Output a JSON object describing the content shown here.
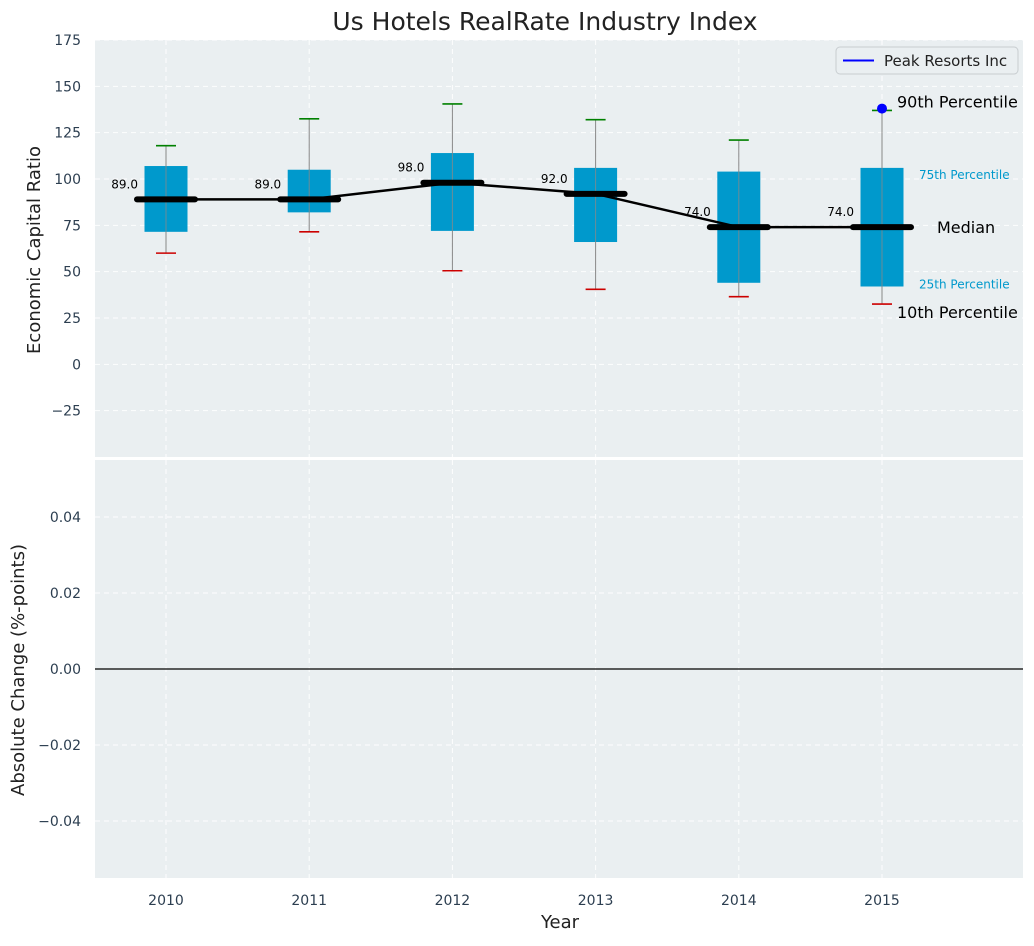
{
  "chart_data": {
    "type": "box",
    "title": "Us Hotels RealRate Industry Index",
    "xlabel": "Year",
    "categories": [
      "2010",
      "2011",
      "2012",
      "2013",
      "2014",
      "2015"
    ],
    "top_panel": {
      "ylabel": "Economic Capital Ratio",
      "ylim": [
        -50,
        175
      ],
      "yticks": [
        175,
        150,
        125,
        100,
        75,
        50,
        25,
        0,
        -25
      ],
      "ytick_labels": [
        "175",
        "150",
        "125",
        "100",
        "75",
        "50",
        "25",
        "0",
        "−25"
      ],
      "percentiles": {
        "p10": [
          60,
          71.5,
          50.5,
          40.5,
          36.5,
          32.5
        ],
        "p25": [
          71.5,
          82,
          72,
          66,
          44,
          42
        ],
        "median": [
          89.0,
          89.0,
          98.0,
          92.0,
          74.0,
          74.0
        ],
        "p75": [
          107,
          105,
          114,
          106,
          104,
          106
        ],
        "p90": [
          118,
          132.5,
          140.5,
          132,
          121,
          137
        ]
      },
      "median_labels": [
        "89.0",
        "89.0",
        "98.0",
        "92.0",
        "74.0",
        "74.0"
      ],
      "company_series": {
        "name": "Peak Resorts Inc",
        "points": [
          {
            "x": "2015",
            "y": 138
          }
        ],
        "color": "#0000ff"
      },
      "legend": {
        "placement": "top-right",
        "label": "Peak Resorts Inc"
      },
      "annotations": {
        "p90": "90th Percentile",
        "p75": "75th Percentile",
        "median": "Median",
        "p25": "25th Percentile",
        "p10": "10th Percentile"
      },
      "grid": true
    },
    "bottom_panel": {
      "ylabel": "Absolute Change (%-points)",
      "ylim": [
        -0.055,
        0.055
      ],
      "yticks": [
        0.04,
        0.02,
        0.0,
        -0.02,
        -0.04
      ],
      "ytick_labels": [
        "0.04",
        "0.02",
        "0.00",
        "−0.02",
        "−0.04"
      ],
      "zero_line": true,
      "grid": true
    },
    "colors": {
      "box": "#0099cc",
      "median": "#000000",
      "p10_cap": "#cc0000",
      "p90_cap": "#008000",
      "whisker": "#888888",
      "panel_bg": "#eaeff1",
      "tick_text": "#2c3e50"
    }
  }
}
